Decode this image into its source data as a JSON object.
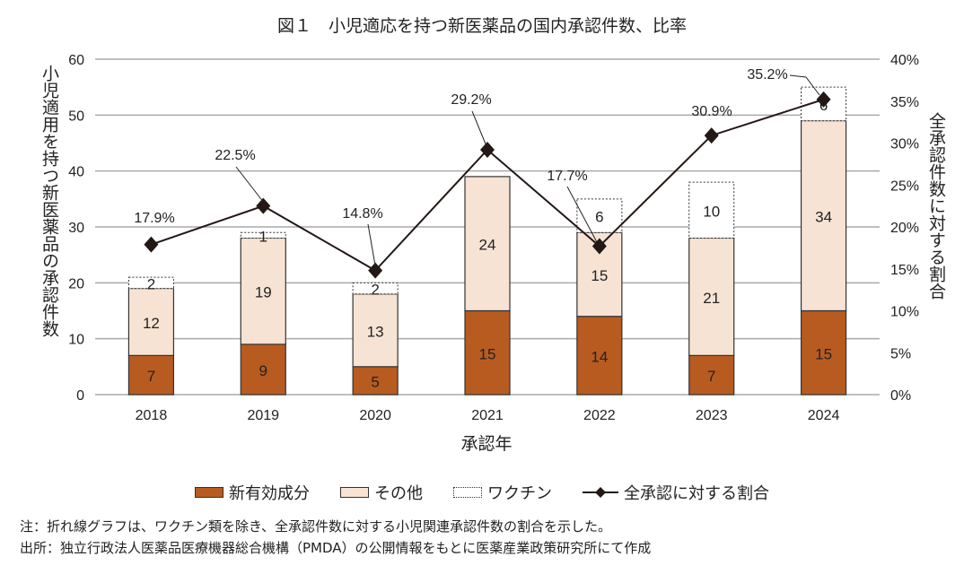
{
  "chart_data": {
    "type": "bar+line",
    "title": "図１　小児適応を持つ新医薬品の国内承認件数、比率",
    "xlabel": "承認年",
    "ylabel": "小児適用を持つ新医薬品の承認件数",
    "y2label": "全承認件数に対する割合",
    "categories": [
      "2018",
      "2019",
      "2020",
      "2021",
      "2022",
      "2023",
      "2024"
    ],
    "ylim": [
      0,
      60
    ],
    "yticks": [
      "0",
      "10",
      "20",
      "30",
      "40",
      "50",
      "60"
    ],
    "y2lim": [
      0,
      40
    ],
    "y2ticks": [
      "0%",
      "5%",
      "10%",
      "15%",
      "20%",
      "25%",
      "30%",
      "35%",
      "40%"
    ],
    "grid": true,
    "legend_position": "bottom",
    "series": [
      {
        "name": "新有効成分",
        "type": "bar",
        "color": "#b85b21",
        "values": [
          7,
          9,
          5,
          15,
          14,
          7,
          15
        ]
      },
      {
        "name": "その他",
        "type": "bar",
        "color": "#f7e3d4",
        "values": [
          12,
          19,
          13,
          24,
          15,
          21,
          34
        ]
      },
      {
        "name": "ワクチン",
        "type": "bar",
        "color": "#ffffff",
        "border": "dotted",
        "values": [
          2,
          1,
          2,
          0,
          6,
          10,
          6
        ]
      },
      {
        "name": "全承認に対する割合",
        "type": "line",
        "color": "#231815",
        "values": [
          17.9,
          22.5,
          14.8,
          29.2,
          17.7,
          30.9,
          35.2
        ],
        "labels": [
          "17.9%",
          "22.5%",
          "14.8%",
          "29.2%",
          "17.7%",
          "30.9%",
          "35.2%"
        ]
      }
    ]
  },
  "notes": [
    "注：折れ線グラフは、ワクチン類を除き、全承認件数に対する小児関連承認件数の割合を示した。",
    "出所：独立行政法人医薬品医療機器総合機構（PMDA）の公開情報をもとに医薬産業政策研究所にて作成"
  ]
}
